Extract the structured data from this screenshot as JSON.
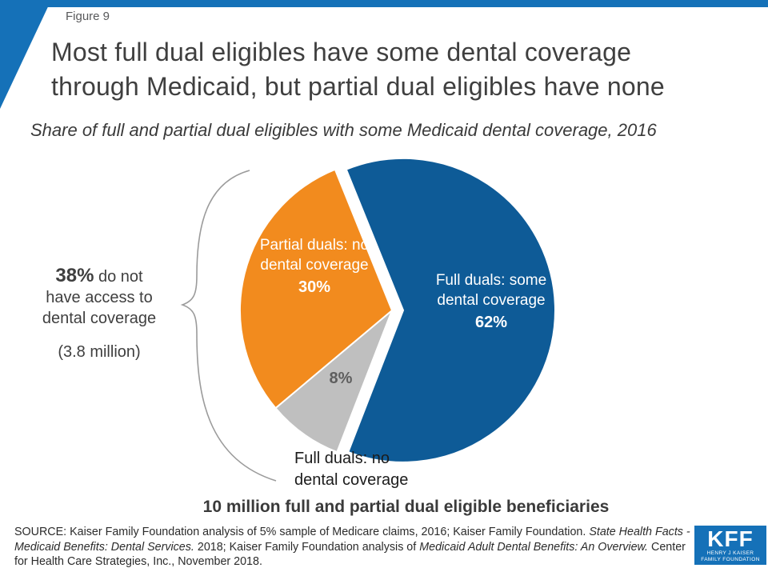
{
  "figure": {
    "label": "Figure 9"
  },
  "title": {
    "line1": "Most full dual eligibles have some dental coverage",
    "line2": "through Medicaid, but partial dual eligibles have none"
  },
  "subtitle": "Share of full and partial dual eligibles with some Medicaid dental coverage, 2016",
  "chart_data": {
    "type": "pie",
    "title": "Share of full and partial dual eligibles with some Medicaid dental coverage, 2016",
    "unit": "percent",
    "total_note": "10 million full and partial dual eligible beneficiaries",
    "start_angle_deg": -22,
    "slices": [
      {
        "label": "Full duals: some dental coverage",
        "value": 62,
        "color": "#0E5B97",
        "label_color": "#FFFFFF",
        "exploded": true
      },
      {
        "label": "Full duals: no dental coverage",
        "value": 8,
        "color": "#BFBFBF",
        "label_color": "#5E5E5E",
        "exploded": false
      },
      {
        "label": "Partial duals: no dental coverage",
        "value": 30,
        "color": "#F28B1E",
        "label_color": "#FFFFFF",
        "exploded": false
      }
    ],
    "callout": {
      "lead": "38%",
      "text": " do not have access to dental coverage",
      "sub": "(3.8 million)"
    },
    "caption": "10 million full and partial dual eligible beneficiaries"
  },
  "source": {
    "p1": "SOURCE: Kaiser Family Foundation analysis of 5% sample of Medicare claims, 2016; Kaiser Family Foundation. ",
    "i1": "State Health Facts - Medicaid Benefits: Dental Services.",
    "p2": " 2018; Kaiser Family Foundation analysis of ",
    "i2": "Medicaid Adult Dental Benefits: An Overview.",
    "p3": " Center for Health Care Strategies, Inc., November 2018."
  },
  "logo": {
    "kff": "KFF",
    "sub1": "HENRY J KAISER",
    "sub2": "FAMILY FOUNDATION"
  },
  "colors": {
    "accent": "#1571B8",
    "pie_blue": "#0E5B97",
    "pie_orange": "#F28B1E",
    "pie_gray": "#BFBFBF",
    "brace": "#9b9b9b"
  }
}
